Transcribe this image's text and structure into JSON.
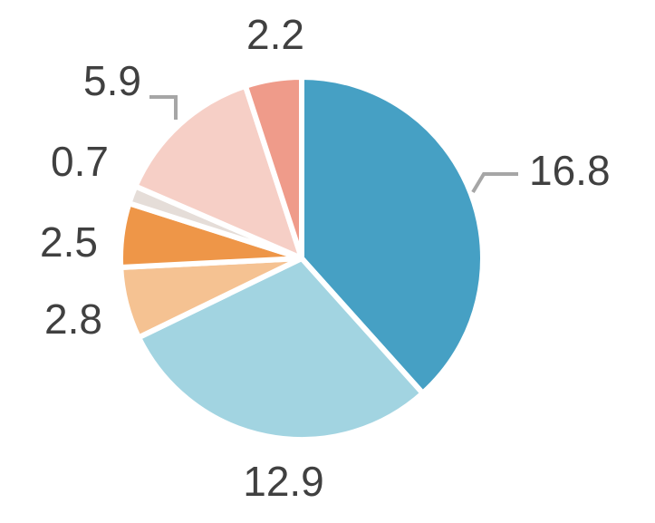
{
  "chart_data": {
    "type": "pie",
    "start_angle_deg": 0,
    "direction": "clockwise",
    "values": [
      16.8,
      12.9,
      2.8,
      2.5,
      0.7,
      5.9,
      2.2
    ],
    "labels": [
      "16.8",
      "12.9",
      "2.8",
      "2.5",
      "0.7",
      "5.9",
      "2.2"
    ],
    "colors": [
      "#46a0c4",
      "#a2d4e1",
      "#f5c292",
      "#ee9648",
      "#e5ddd8",
      "#f6cfc6",
      "#ef9b8a"
    ],
    "leader_line_color": "#a6a6a6",
    "label_color": "#404040",
    "legend": "none"
  }
}
